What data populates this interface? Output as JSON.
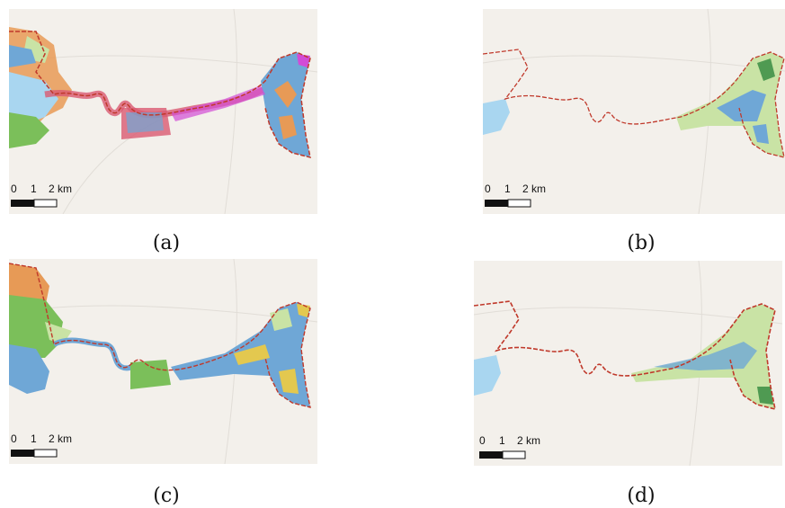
{
  "panels": [
    {
      "id": "a",
      "caption": "(a)"
    },
    {
      "id": "b",
      "caption": "(b)"
    },
    {
      "id": "c",
      "caption": "(c)"
    },
    {
      "id": "d",
      "caption": "(d)"
    }
  ],
  "scale_bar": {
    "label_0": "0",
    "label_1": "1",
    "label_2": "2 km"
  },
  "colors": {
    "basemap": "#f2efea",
    "boundary": "#c0392b",
    "water": "#a9d6f0",
    "green": "#7bbf5a",
    "light_green": "#c9e3a5",
    "blue": "#6fa7d6",
    "orange": "#e79a56",
    "magenta": "#d24bd6",
    "dark_green": "#4f9a52"
  }
}
